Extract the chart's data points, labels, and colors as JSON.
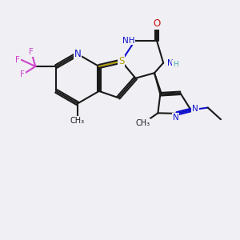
{
  "bg_color": "#f0f0f4",
  "atom_colors": {
    "C": "#1a1a1a",
    "N": "#1010cc",
    "O": "#cc1010",
    "S": "#b8a000",
    "F": "#cc44cc",
    "H": "#44aaaa"
  },
  "figsize": [
    3.0,
    3.0
  ],
  "dpi": 100,
  "xlim": [
    0,
    10
  ],
  "ylim": [
    0,
    10
  ]
}
